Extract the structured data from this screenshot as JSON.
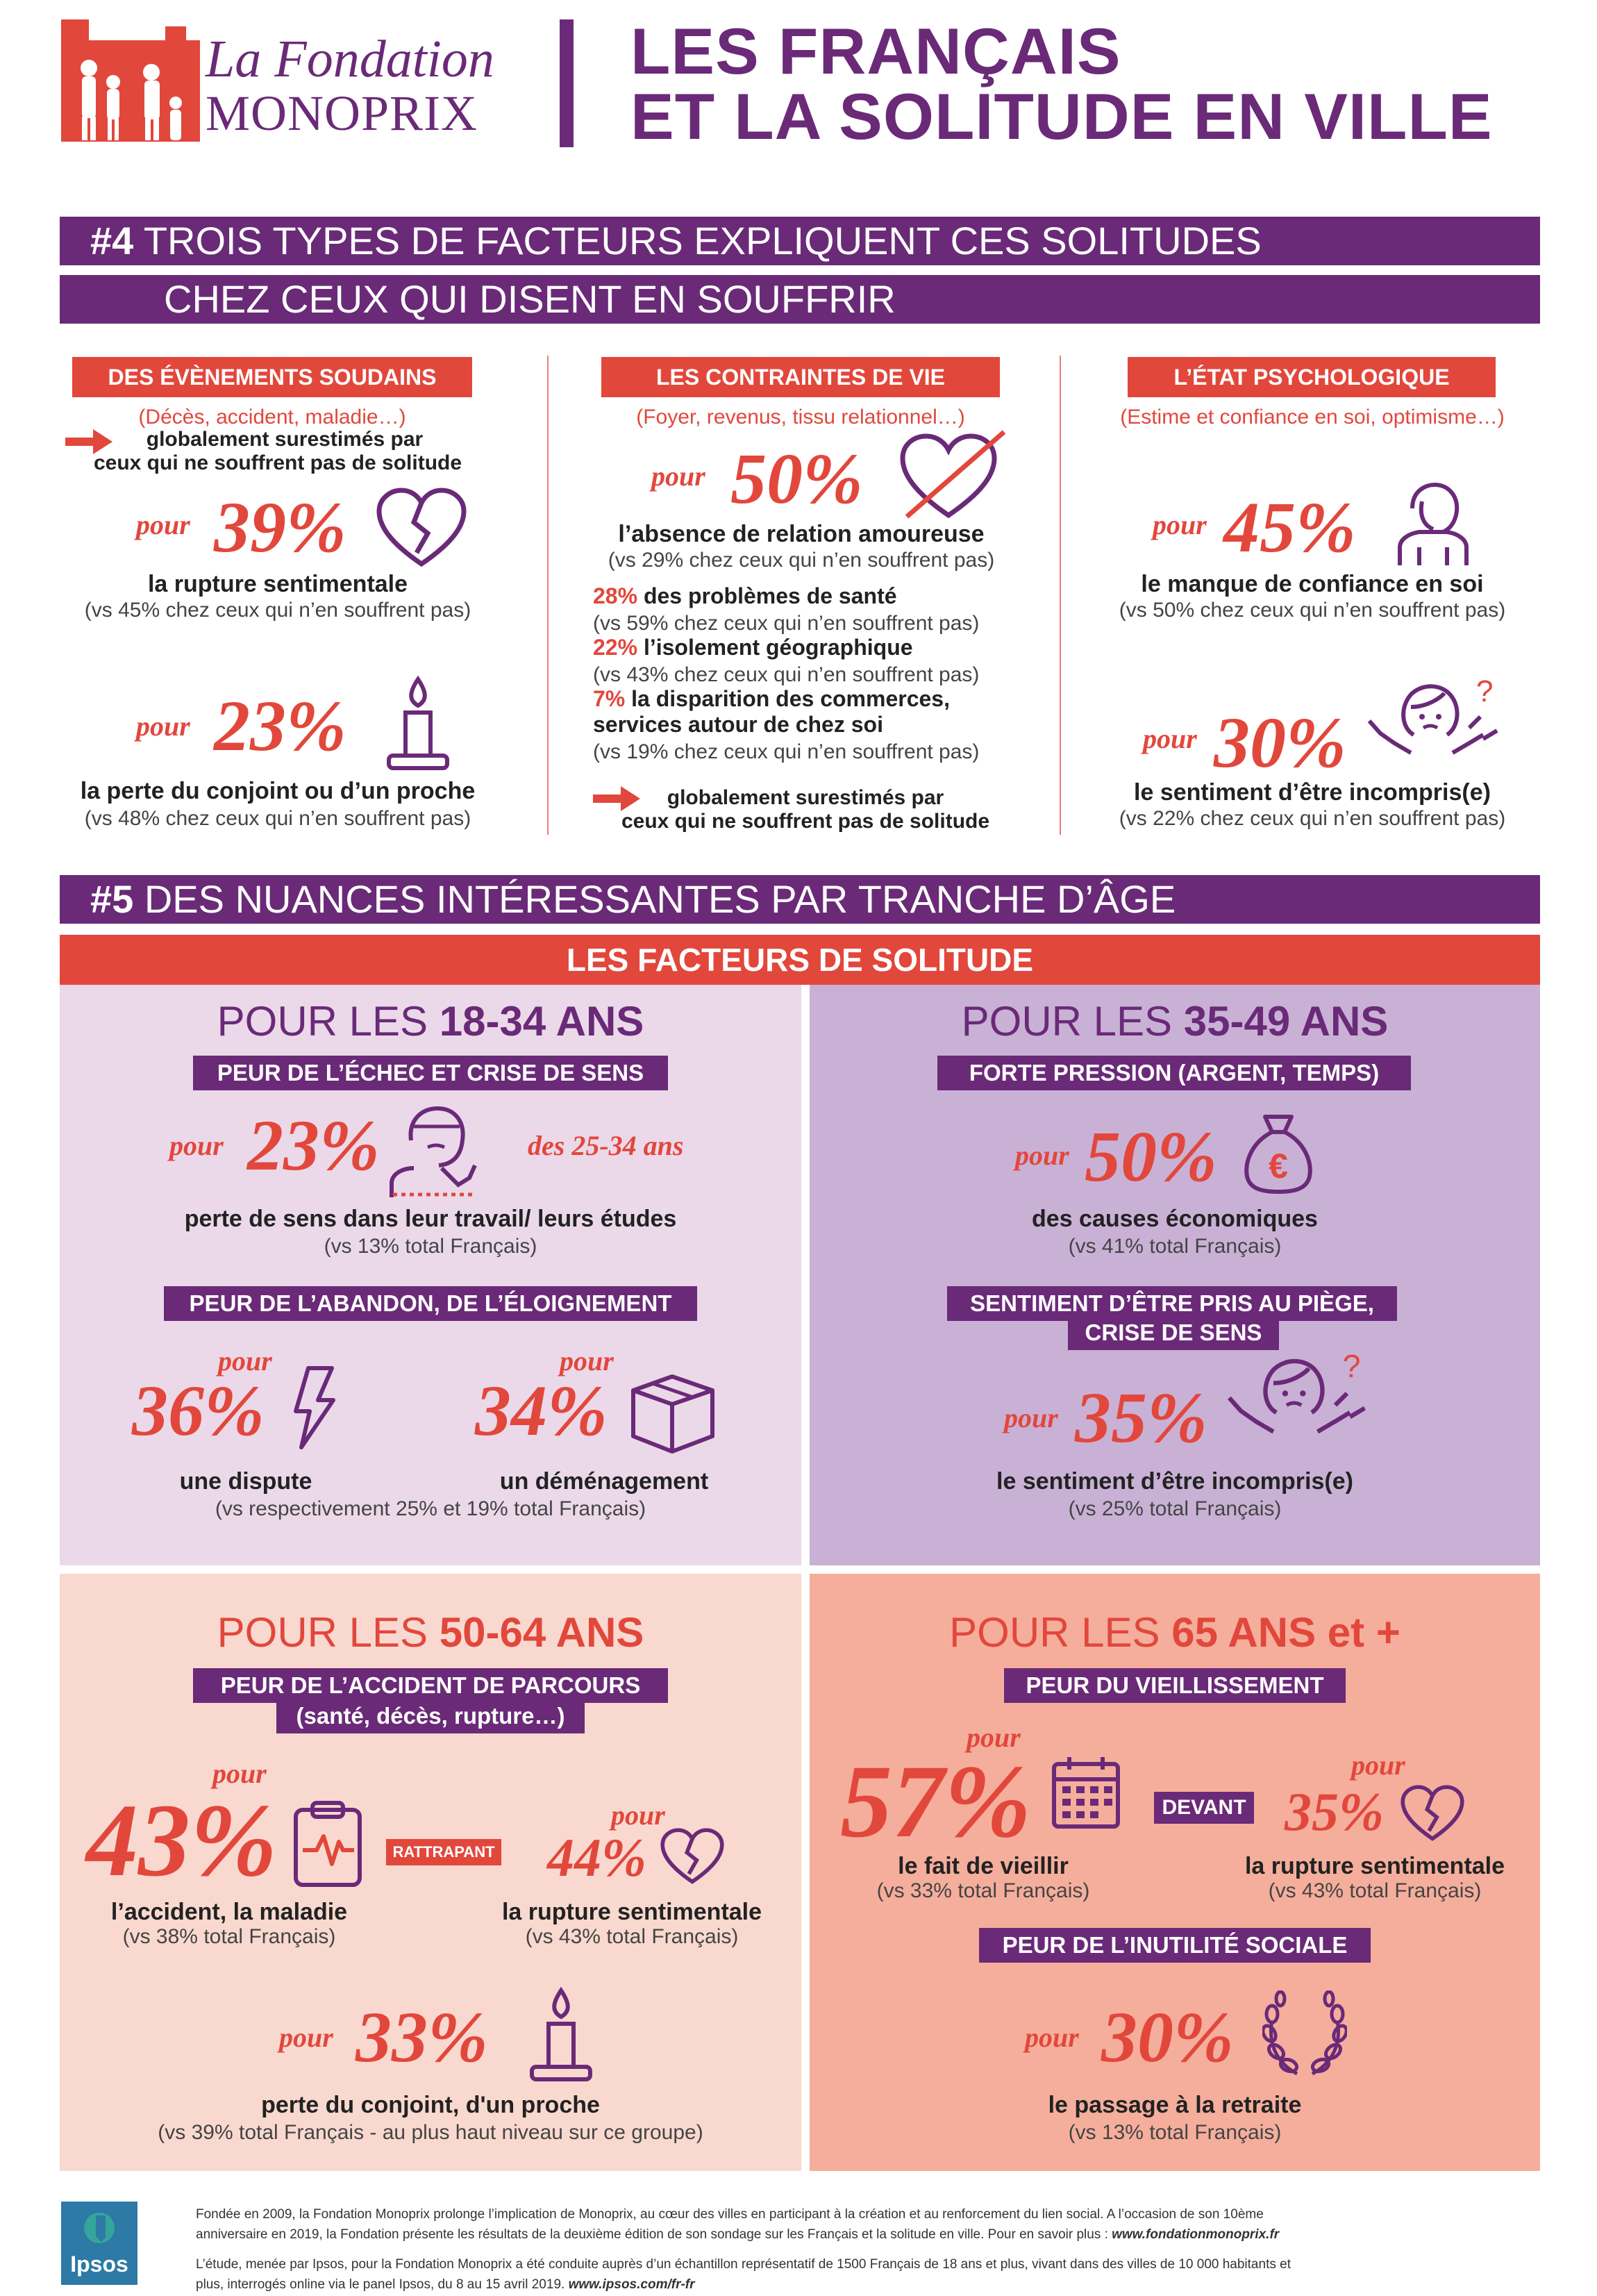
{
  "brand": {
    "line1": "La Fondation",
    "line2": "MONOPRIX"
  },
  "title": {
    "line1": "LES FRANÇAIS",
    "line2": "ET LA SOLITUDE EN VILLE"
  },
  "section4": {
    "num": "#4",
    "line1": "TROIS TYPES DE FACTEURS EXPLIQUENT CES SOLITUDES",
    "line2": "CHEZ CEUX QUI DISENT EN SOUFFRIR",
    "col1": {
      "label": "DES ÉVÈNEMENTS SOUDAINS",
      "sub": "(Décès, accident, maladie…)",
      "note1": "globalement surestimés par",
      "note2": "ceux qui ne souffrent pas de solitude",
      "s1": {
        "pour": "pour",
        "pct": "39%",
        "title": "la rupture sentimentale",
        "vs": "(vs 45% chez ceux qui n’en souffrent pas)"
      },
      "s2": {
        "pour": "pour",
        "pct": "23%",
        "title": "la perte du conjoint ou d’un proche",
        "vs": "(vs 48% chez ceux qui n’en souffrent pas)"
      }
    },
    "col2": {
      "label": "LES CONTRAINTES DE VIE",
      "sub": "(Foyer, revenus, tissu relationnel…)",
      "s1": {
        "pour": "pour",
        "pct": "50%",
        "title": "l’absence de relation amoureuse",
        "vs": "(vs 29% chez ceux qui n’en souffrent pas)"
      },
      "items": [
        {
          "pct": "28%",
          "text": "des problèmes de santé",
          "vs": "(vs 59% chez ceux qui n’en souffrent pas)"
        },
        {
          "pct": "22%",
          "text": "l’isolement géographique",
          "vs": "(vs 43% chez ceux qui n’en souffrent pas)"
        },
        {
          "pct": "7%",
          "text": "la disparition des commerces,",
          "text2": "services autour de chez soi",
          "vs": "(vs 19% chez ceux qui n’en souffrent pas)"
        }
      ],
      "note1": "globalement surestimés par",
      "note2": "ceux qui ne souffrent pas de solitude"
    },
    "col3": {
      "label": "L’ÉTAT PSYCHOLOGIQUE",
      "sub": "(Estime et confiance en soi, optimisme…)",
      "s1": {
        "pour": "pour",
        "pct": "45%",
        "title": "le manque de confiance en soi",
        "vs": "(vs 50% chez ceux qui n’en souffrent pas)"
      },
      "s2": {
        "pour": "pour",
        "pct": "30%",
        "title": "le sentiment d’être incompris(e)",
        "vs": "(vs 22% chez ceux qui n’en souffrent pas)"
      }
    }
  },
  "section5": {
    "num": "#5",
    "title": "DES NUANCES INTÉRESSANTES PAR TRANCHE D’ÂGE",
    "subtitle": "LES FACTEURS DE SOLITUDE",
    "p1": {
      "h_pre": "POUR LES ",
      "h_age": "18-34 ANS",
      "label1": "PEUR DE L’ÉCHEC ET CRISE DE SENS",
      "s1": {
        "pour": "pour",
        "pct": "23%",
        "extra": "des 25-34 ans",
        "title": "perte de sens dans leur travail/ leurs études",
        "vs": "(vs 13% total Français)"
      },
      "label2": "PEUR DE L’ABANDON, DE L’ÉLOIGNEMENT",
      "s2": {
        "pour": "pour",
        "pct": "36%",
        "title": "une dispute"
      },
      "s3": {
        "pour": "pour",
        "pct": "34%",
        "title": "un déménagement"
      },
      "vs2": "(vs respectivement 25% et 19% total Français)"
    },
    "p2": {
      "h_pre": "POUR LES ",
      "h_age": "35-49 ANS",
      "label1": "FORTE PRESSION (ARGENT, TEMPS)",
      "s1": {
        "pour": "pour",
        "pct": "50%",
        "title": "des causes économiques",
        "vs": "(vs 41% total Français)"
      },
      "label2a": "SENTIMENT D’ÊTRE PRIS AU PIÈGE,",
      "label2b": "CRISE DE SENS",
      "s2": {
        "pour": "pour",
        "pct": "35%",
        "title": "le sentiment d’être incompris(e)",
        "vs": "(vs 25% total Français)"
      }
    },
    "p3": {
      "h_pre": "POUR LES ",
      "h_age": "50-64 ANS",
      "label1a": "PEUR DE L’ACCIDENT DE PARCOURS",
      "label1b": "(santé, décès, rupture…)",
      "s1": {
        "pour": "pour",
        "pct": "43%",
        "title": "l’accident, la maladie",
        "vs": "(vs 38% total Français)"
      },
      "tag": "RATTRAPANT",
      "s2": {
        "pour": "pour",
        "pct": "44%",
        "title": "la rupture sentimentale",
        "vs": "(vs 43% total Français)"
      },
      "s3": {
        "pour": "pour",
        "pct": "33%",
        "title": "perte du conjoint, d'un proche",
        "vs": "(vs 39% total Français - au plus haut niveau sur ce groupe)"
      }
    },
    "p4": {
      "h_pre": "POUR LES ",
      "h_age": "65 ANS et +",
      "label1": "PEUR DU VIEILLISSEMENT",
      "s1": {
        "pour": "pour",
        "pct": "57%",
        "title": "le fait de vieillir",
        "vs": "(vs 33% total Français)"
      },
      "tag": "DEVANT",
      "s2": {
        "pour": "pour",
        "pct": "35%",
        "title": "la rupture sentimentale",
        "vs": "(vs 43% total Français)"
      },
      "label2": "PEUR DE L’INUTILITÉ SOCIALE",
      "s3": {
        "pour": "pour",
        "pct": "30%",
        "title": "le passage à la retraite",
        "vs": "(vs 13% total Français)"
      }
    }
  },
  "footer": {
    "ipsos": "Ipsos",
    "p1a": "Fondée en 2009, la Fondation Monoprix prolonge l’implication de Monoprix, au cœur des villes en participant à la création et au renforcement du lien social. A l’occasion de son 10ème",
    "p1b": "anniversaire en 2019, la Fondation présente les résultats de la deuxième édition de son sondage sur les Français et la solitude en ville. Pour en savoir plus :",
    "url1": "www.fondationmonoprix.fr",
    "p2a": "L’étude, menée par Ipsos, pour la Fondation Monoprix a été conduite auprès d’un échantillon représentatif de 1500 Français de 18 ans et plus, vivant dans des villes de 10 000 habitants et",
    "p2b": "plus, interrogés online via le panel Ipsos, du 8 au 15 avril 2019.",
    "url2": "www.ipsos.com/fr-fr"
  },
  "colors": {
    "purple": "#6a2a78",
    "red": "#e2473c",
    "lilac": "#ebd9ea",
    "lilac2": "#c9b1d6",
    "peach": "#f9d9cf",
    "salmon": "#f5ae9c"
  }
}
